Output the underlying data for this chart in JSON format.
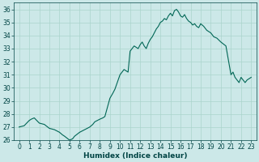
{
  "title": "",
  "xlabel": "Humidex (Indice chaleur)",
  "ylabel": "",
  "background_color": "#cce8e8",
  "grid_major_color": "#aad4cc",
  "grid_minor_color": "#bbdddd",
  "line_color": "#006655",
  "xlim": [
    -0.5,
    23.5
  ],
  "ylim": [
    26,
    36.5
  ],
  "yticks": [
    26,
    27,
    28,
    29,
    30,
    31,
    32,
    33,
    34,
    35,
    36
  ],
  "xticks": [
    0,
    1,
    2,
    3,
    4,
    5,
    6,
    7,
    8,
    9,
    10,
    11,
    12,
    13,
    14,
    15,
    16,
    17,
    18,
    19,
    20,
    21,
    22,
    23
  ],
  "x": [
    0,
    0.5,
    1,
    1.2,
    1.5,
    2,
    2.5,
    3,
    3.5,
    4,
    4.3,
    4.5,
    5,
    5.3,
    5.5,
    6,
    6.5,
    7,
    7.3,
    7.5,
    8,
    8.3,
    8.5,
    9,
    9.3,
    9.5,
    10,
    10.2,
    10.4,
    10.6,
    10.8,
    11,
    11.2,
    11.4,
    11.6,
    11.8,
    12,
    12.2,
    12.4,
    12.6,
    12.8,
    13,
    13.2,
    13.4,
    13.6,
    13.8,
    14,
    14.2,
    14.4,
    14.6,
    14.8,
    15,
    15.2,
    15.4,
    15.6,
    15.8,
    16,
    16.2,
    16.4,
    16.6,
    16.8,
    17,
    17.2,
    17.4,
    17.6,
    17.8,
    18,
    18.3,
    18.6,
    19,
    19.3,
    19.6,
    20,
    20.5,
    21,
    21.2,
    21.4,
    21.6,
    21.8,
    22,
    22.2,
    22.4,
    22.6,
    22.8,
    23
  ],
  "y": [
    27.0,
    27.1,
    27.5,
    27.6,
    27.7,
    27.3,
    27.2,
    26.9,
    26.8,
    26.6,
    26.4,
    26.3,
    26.0,
    26.1,
    26.3,
    26.6,
    26.8,
    27.0,
    27.2,
    27.4,
    27.6,
    27.7,
    27.8,
    29.2,
    29.6,
    29.9,
    31.0,
    31.2,
    31.4,
    31.3,
    31.2,
    32.8,
    33.0,
    33.2,
    33.1,
    33.0,
    33.3,
    33.5,
    33.2,
    33.0,
    33.4,
    33.7,
    33.9,
    34.2,
    34.5,
    34.7,
    35.0,
    35.1,
    35.3,
    35.2,
    35.5,
    35.7,
    35.5,
    35.9,
    36.0,
    35.8,
    35.5,
    35.4,
    35.6,
    35.3,
    35.1,
    35.0,
    34.8,
    34.9,
    34.7,
    34.6,
    34.9,
    34.7,
    34.4,
    34.2,
    33.9,
    33.8,
    33.5,
    33.2,
    31.0,
    31.2,
    30.8,
    30.6,
    30.4,
    30.8,
    30.6,
    30.4,
    30.6,
    30.7,
    30.8
  ],
  "tick_fontsize": 5.5,
  "xlabel_fontsize": 6.5,
  "tick_color": "#004444",
  "line_width": 0.8
}
